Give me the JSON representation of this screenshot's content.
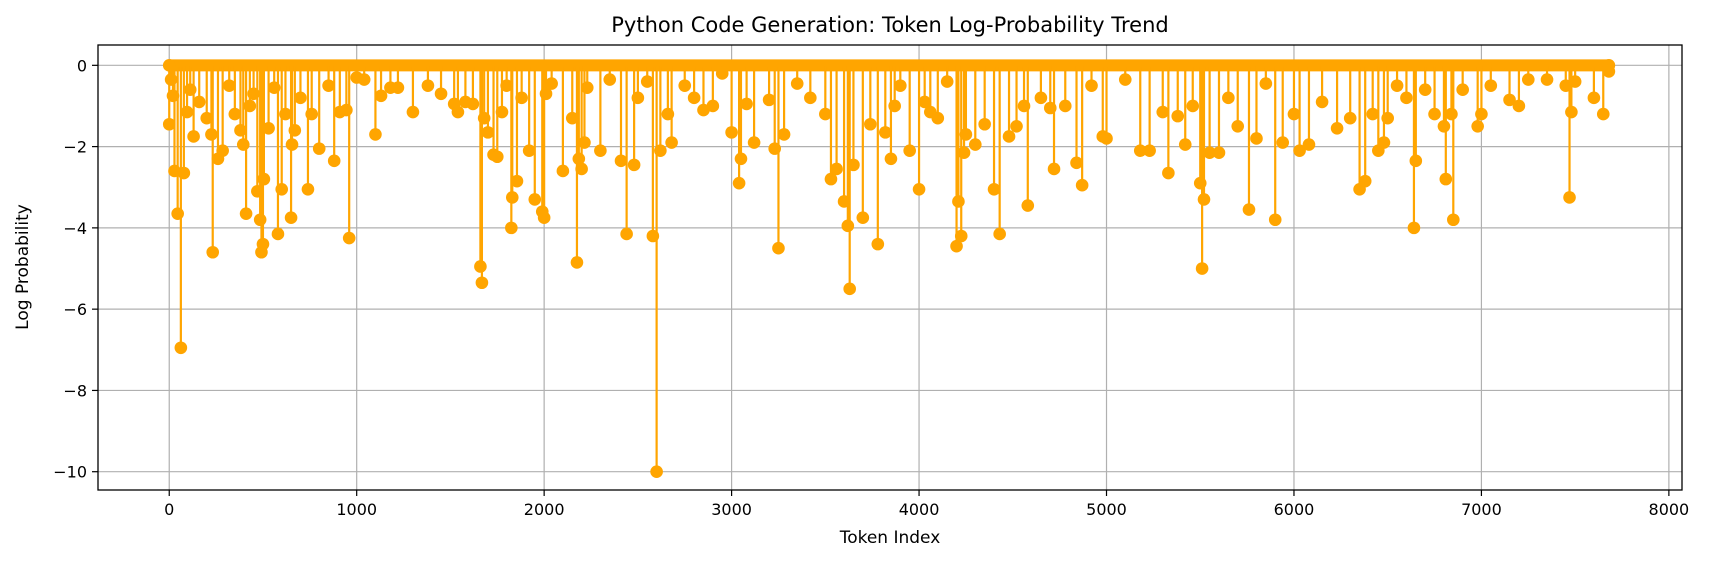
{
  "chart_data": {
    "type": "line",
    "title": "Python Code Generation: Token Log-Probability Trend",
    "xlabel": "Token Index",
    "ylabel": "Log Probability",
    "xlim": [
      -380,
      8070
    ],
    "ylim": [
      -10.45,
      0.5
    ],
    "xticks": [
      0,
      1000,
      2000,
      3000,
      4000,
      5000,
      6000,
      7000,
      8000
    ],
    "yticks": [
      0,
      -2,
      -4,
      -6,
      -8,
      -10
    ],
    "grid": true,
    "legend": "none",
    "series": [
      {
        "color": "#FFA500",
        "marker": "circle",
        "x_start": 0,
        "x_end": 7680,
        "baseline": 0,
        "dips": [
          [
            0,
            -1.45
          ],
          [
            10,
            -0.35
          ],
          [
            20,
            -0.75
          ],
          [
            28,
            -2.6
          ],
          [
            45,
            -3.65
          ],
          [
            62,
            -6.95
          ],
          [
            78,
            -2.65
          ],
          [
            95,
            -1.15
          ],
          [
            112,
            -0.6
          ],
          [
            130,
            -1.75
          ],
          [
            160,
            -0.9
          ],
          [
            200,
            -1.3
          ],
          [
            225,
            -1.7
          ],
          [
            232,
            -4.6
          ],
          [
            260,
            -2.3
          ],
          [
            285,
            -2.1
          ],
          [
            320,
            -0.5
          ],
          [
            350,
            -1.2
          ],
          [
            380,
            -1.6
          ],
          [
            395,
            -1.95
          ],
          [
            410,
            -3.65
          ],
          [
            430,
            -1.0
          ],
          [
            450,
            -0.7
          ],
          [
            470,
            -3.1
          ],
          [
            485,
            -3.8
          ],
          [
            492,
            -4.6
          ],
          [
            500,
            -4.4
          ],
          [
            505,
            -2.8
          ],
          [
            530,
            -1.55
          ],
          [
            560,
            -0.55
          ],
          [
            580,
            -4.15
          ],
          [
            600,
            -3.05
          ],
          [
            620,
            -1.2
          ],
          [
            650,
            -3.75
          ],
          [
            655,
            -1.95
          ],
          [
            670,
            -1.6
          ],
          [
            700,
            -0.8
          ],
          [
            740,
            -3.05
          ],
          [
            760,
            -1.2
          ],
          [
            800,
            -2.05
          ],
          [
            850,
            -0.5
          ],
          [
            880,
            -2.35
          ],
          [
            910,
            -1.15
          ],
          [
            945,
            -1.1
          ],
          [
            960,
            -4.25
          ],
          [
            1000,
            -0.3
          ],
          [
            1040,
            -0.35
          ],
          [
            1100,
            -1.7
          ],
          [
            1130,
            -0.75
          ],
          [
            1180,
            -0.55
          ],
          [
            1220,
            -0.55
          ],
          [
            1300,
            -1.15
          ],
          [
            1380,
            -0.5
          ],
          [
            1450,
            -0.7
          ],
          [
            1520,
            -0.95
          ],
          [
            1540,
            -1.15
          ],
          [
            1580,
            -0.9
          ],
          [
            1620,
            -0.95
          ],
          [
            1660,
            -4.95
          ],
          [
            1668,
            -5.35
          ],
          [
            1680,
            -1.3
          ],
          [
            1700,
            -1.65
          ],
          [
            1730,
            -2.2
          ],
          [
            1750,
            -2.25
          ],
          [
            1775,
            -1.15
          ],
          [
            1800,
            -0.5
          ],
          [
            1825,
            -4.0
          ],
          [
            1830,
            -3.25
          ],
          [
            1855,
            -2.85
          ],
          [
            1880,
            -0.8
          ],
          [
            1920,
            -2.1
          ],
          [
            1950,
            -3.3
          ],
          [
            1990,
            -3.6
          ],
          [
            2000,
            -3.75
          ],
          [
            2010,
            -0.7
          ],
          [
            2040,
            -0.45
          ],
          [
            2100,
            -2.6
          ],
          [
            2150,
            -1.3
          ],
          [
            2175,
            -4.85
          ],
          [
            2185,
            -2.3
          ],
          [
            2200,
            -2.55
          ],
          [
            2215,
            -1.9
          ],
          [
            2230,
            -0.55
          ],
          [
            2300,
            -2.1
          ],
          [
            2350,
            -0.35
          ],
          [
            2410,
            -2.35
          ],
          [
            2440,
            -4.15
          ],
          [
            2480,
            -2.45
          ],
          [
            2500,
            -0.8
          ],
          [
            2550,
            -0.4
          ],
          [
            2580,
            -4.2
          ],
          [
            2600,
            -10.0
          ],
          [
            2620,
            -2.1
          ],
          [
            2660,
            -1.2
          ],
          [
            2680,
            -1.9
          ],
          [
            2750,
            -0.5
          ],
          [
            2800,
            -0.8
          ],
          [
            2850,
            -1.1
          ],
          [
            2900,
            -1.0
          ],
          [
            2950,
            -0.2
          ],
          [
            3000,
            -1.65
          ],
          [
            3040,
            -2.9
          ],
          [
            3050,
            -2.3
          ],
          [
            3080,
            -0.95
          ],
          [
            3120,
            -1.9
          ],
          [
            3200,
            -0.85
          ],
          [
            3230,
            -2.05
          ],
          [
            3250,
            -4.5
          ],
          [
            3280,
            -1.7
          ],
          [
            3350,
            -0.45
          ],
          [
            3420,
            -0.8
          ],
          [
            3500,
            -1.2
          ],
          [
            3530,
            -2.8
          ],
          [
            3560,
            -2.55
          ],
          [
            3600,
            -3.35
          ],
          [
            3620,
            -3.95
          ],
          [
            3630,
            -5.5
          ],
          [
            3650,
            -2.45
          ],
          [
            3700,
            -3.75
          ],
          [
            3740,
            -1.45
          ],
          [
            3780,
            -4.4
          ],
          [
            3820,
            -1.65
          ],
          [
            3850,
            -2.3
          ],
          [
            3870,
            -1.0
          ],
          [
            3900,
            -0.5
          ],
          [
            3950,
            -2.1
          ],
          [
            4000,
            -3.05
          ],
          [
            4030,
            -0.9
          ],
          [
            4060,
            -1.15
          ],
          [
            4100,
            -1.3
          ],
          [
            4150,
            -0.4
          ],
          [
            4200,
            -4.45
          ],
          [
            4210,
            -3.35
          ],
          [
            4225,
            -4.2
          ],
          [
            4240,
            -2.15
          ],
          [
            4250,
            -1.7
          ],
          [
            4300,
            -1.95
          ],
          [
            4350,
            -1.45
          ],
          [
            4400,
            -3.05
          ],
          [
            4430,
            -4.15
          ],
          [
            4480,
            -1.75
          ],
          [
            4520,
            -1.5
          ],
          [
            4560,
            -1.0
          ],
          [
            4580,
            -3.45
          ],
          [
            4650,
            -0.8
          ],
          [
            4700,
            -1.05
          ],
          [
            4720,
            -2.55
          ],
          [
            4780,
            -1.0
          ],
          [
            4840,
            -2.4
          ],
          [
            4870,
            -2.95
          ],
          [
            4920,
            -0.5
          ],
          [
            4980,
            -1.75
          ],
          [
            5000,
            -1.8
          ],
          [
            5100,
            -0.35
          ],
          [
            5180,
            -2.1
          ],
          [
            5230,
            -2.1
          ],
          [
            5300,
            -1.15
          ],
          [
            5330,
            -2.65
          ],
          [
            5380,
            -1.25
          ],
          [
            5420,
            -1.95
          ],
          [
            5460,
            -1.0
          ],
          [
            5500,
            -2.9
          ],
          [
            5510,
            -5.0
          ],
          [
            5520,
            -3.3
          ],
          [
            5550,
            -2.15
          ],
          [
            5600,
            -2.15
          ],
          [
            5650,
            -0.8
          ],
          [
            5700,
            -1.5
          ],
          [
            5760,
            -3.55
          ],
          [
            5800,
            -1.8
          ],
          [
            5850,
            -0.45
          ],
          [
            5900,
            -3.8
          ],
          [
            5940,
            -1.9
          ],
          [
            6000,
            -1.2
          ],
          [
            6030,
            -2.1
          ],
          [
            6080,
            -1.95
          ],
          [
            6150,
            -0.9
          ],
          [
            6230,
            -1.55
          ],
          [
            6300,
            -1.3
          ],
          [
            6350,
            -3.05
          ],
          [
            6380,
            -2.85
          ],
          [
            6420,
            -1.2
          ],
          [
            6450,
            -2.1
          ],
          [
            6480,
            -1.9
          ],
          [
            6500,
            -1.3
          ],
          [
            6550,
            -0.5
          ],
          [
            6600,
            -0.8
          ],
          [
            6640,
            -4.0
          ],
          [
            6650,
            -2.35
          ],
          [
            6700,
            -0.6
          ],
          [
            6750,
            -1.2
          ],
          [
            6800,
            -1.5
          ],
          [
            6810,
            -2.8
          ],
          [
            6840,
            -1.2
          ],
          [
            6850,
            -3.8
          ],
          [
            6900,
            -0.6
          ],
          [
            6980,
            -1.5
          ],
          [
            7000,
            -1.2
          ],
          [
            7050,
            -0.5
          ],
          [
            7150,
            -0.85
          ],
          [
            7200,
            -1.0
          ],
          [
            7250,
            -0.35
          ],
          [
            7350,
            -0.35
          ],
          [
            7450,
            -0.5
          ],
          [
            7470,
            -3.25
          ],
          [
            7480,
            -1.15
          ],
          [
            7500,
            -0.4
          ],
          [
            7600,
            -0.8
          ],
          [
            7650,
            -1.2
          ],
          [
            7680,
            -0.15
          ]
        ]
      }
    ]
  }
}
